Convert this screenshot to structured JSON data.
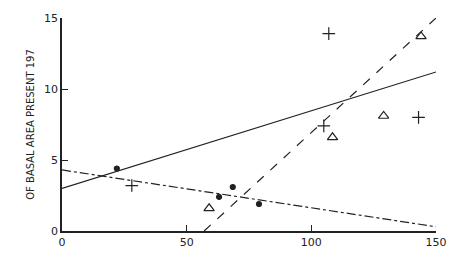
{
  "chart_data": {
    "type": "scatter",
    "y_label": "OF BASAL AREA PRESENT 197",
    "xlim": [
      0,
      150
    ],
    "xticks": [
      0,
      50,
      100,
      150
    ],
    "ylim": [
      0,
      15
    ],
    "yticks": [
      0,
      5,
      10,
      15
    ],
    "grid": false,
    "series": [
      {
        "type": "scatter",
        "marker": "circle",
        "color": "#222222",
        "x": [
          22,
          63,
          68.5,
          79
        ],
        "values": [
          4.4,
          2.4,
          3.1,
          1.9
        ]
      },
      {
        "type": "scatter",
        "marker": "cross",
        "color": "#222222",
        "x": [
          28,
          105,
          107,
          143
        ],
        "values": [
          3.2,
          7.4,
          13.9,
          8.0
        ]
      },
      {
        "type": "scatter",
        "marker": "triangle-open",
        "color": "#222222",
        "x": [
          59,
          108.5,
          129,
          144
        ],
        "values": [
          1.6,
          6.6,
          8.1,
          13.7
        ]
      },
      {
        "type": "line",
        "line_style": "dashdot",
        "color": "#222222",
        "x": [
          0,
          150
        ],
        "values": [
          4.3,
          0.3
        ]
      },
      {
        "type": "line",
        "line_style": "solid",
        "color": "#222222",
        "x": [
          0,
          150
        ],
        "values": [
          3,
          11.2
        ]
      },
      {
        "type": "line",
        "line_style": "dash",
        "color": "#222222",
        "x": [
          57,
          150
        ],
        "values": [
          0,
          15
        ]
      }
    ]
  }
}
